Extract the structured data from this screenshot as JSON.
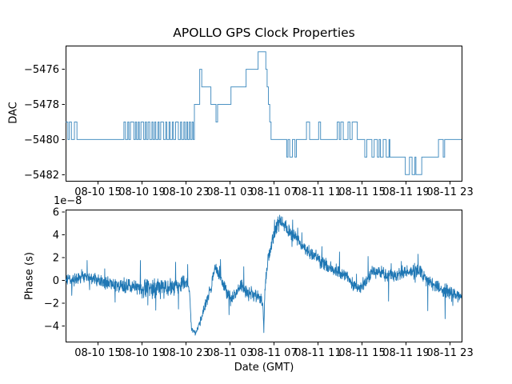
{
  "figure": {
    "background": "#ffffff",
    "line_color": "#1f77b4",
    "spine_color": "#000000",
    "text_color": "#000000"
  },
  "chart_data": [
    {
      "type": "step",
      "title": "APOLLO GPS Clock Properties",
      "ylabel": "DAC",
      "x_unit": "hours from 08-10 00:00 GMT",
      "xlim": [
        12.1,
        48.1
      ],
      "ylim": [
        -5482.35,
        -5474.65
      ],
      "grid": false,
      "legend": "none",
      "xticks": {
        "values": [
          15,
          19,
          23,
          27,
          31,
          35,
          39,
          43,
          47
        ],
        "labels": [
          "08-10 15",
          "08-10 19",
          "08-10 23",
          "08-11 03",
          "08-11 07",
          "08-11 11",
          "08-11 15",
          "08-11 19",
          "08-11 23"
        ]
      },
      "yticks": {
        "values": [
          -5476,
          -5478,
          -5480,
          -5482
        ],
        "labels": [
          "−5476",
          "−5478",
          "−5480",
          "−5482"
        ]
      },
      "x_end": 48.1,
      "steps": [
        [
          12.1,
          -5479
        ],
        [
          12.3,
          -5480
        ],
        [
          12.44,
          -5479
        ],
        [
          12.63,
          -5480
        ],
        [
          12.9,
          -5479
        ],
        [
          13.13,
          -5480
        ],
        [
          17.4,
          -5479
        ],
        [
          17.55,
          -5480
        ],
        [
          17.75,
          -5479
        ],
        [
          17.85,
          -5480
        ],
        [
          18.0,
          -5479
        ],
        [
          18.3,
          -5480
        ],
        [
          18.45,
          -5479
        ],
        [
          18.55,
          -5480
        ],
        [
          18.7,
          -5479
        ],
        [
          18.8,
          -5480
        ],
        [
          18.95,
          -5479
        ],
        [
          19.2,
          -5480
        ],
        [
          19.35,
          -5479
        ],
        [
          19.45,
          -5480
        ],
        [
          19.6,
          -5479
        ],
        [
          19.75,
          -5480
        ],
        [
          19.95,
          -5479
        ],
        [
          20.05,
          -5480
        ],
        [
          20.2,
          -5479
        ],
        [
          20.3,
          -5480
        ],
        [
          20.5,
          -5479
        ],
        [
          20.6,
          -5480
        ],
        [
          20.75,
          -5479
        ],
        [
          21.0,
          -5480
        ],
        [
          21.2,
          -5479
        ],
        [
          21.3,
          -5480
        ],
        [
          21.5,
          -5479
        ],
        [
          21.6,
          -5480
        ],
        [
          21.8,
          -5479
        ],
        [
          21.9,
          -5480
        ],
        [
          22.1,
          -5479
        ],
        [
          22.35,
          -5480
        ],
        [
          22.55,
          -5479
        ],
        [
          22.65,
          -5480
        ],
        [
          22.85,
          -5479
        ],
        [
          22.95,
          -5480
        ],
        [
          23.1,
          -5479
        ],
        [
          23.2,
          -5480
        ],
        [
          23.35,
          -5479
        ],
        [
          23.45,
          -5480
        ],
        [
          23.6,
          -5479
        ],
        [
          23.7,
          -5480
        ],
        [
          23.81,
          -5478
        ],
        [
          24.29,
          -5476
        ],
        [
          24.48,
          -5477
        ],
        [
          25.31,
          -5478
        ],
        [
          25.77,
          -5479
        ],
        [
          25.92,
          -5478
        ],
        [
          27.13,
          -5477
        ],
        [
          28.51,
          -5476
        ],
        [
          29.6,
          -5475
        ],
        [
          30.3,
          -5476
        ],
        [
          30.42,
          -5477
        ],
        [
          30.54,
          -5478
        ],
        [
          30.66,
          -5479
        ],
        [
          30.78,
          -5480
        ],
        [
          32.2,
          -5481
        ],
        [
          32.32,
          -5480
        ],
        [
          32.48,
          -5481
        ],
        [
          32.72,
          -5480
        ],
        [
          32.95,
          -5481
        ],
        [
          33.08,
          -5480
        ],
        [
          34.0,
          -5479
        ],
        [
          34.28,
          -5480
        ],
        [
          35.1,
          -5479
        ],
        [
          35.28,
          -5480
        ],
        [
          36.8,
          -5479
        ],
        [
          36.98,
          -5480
        ],
        [
          37.12,
          -5479
        ],
        [
          37.34,
          -5480
        ],
        [
          37.77,
          -5479
        ],
        [
          37.95,
          -5480
        ],
        [
          38.15,
          -5479
        ],
        [
          38.62,
          -5480
        ],
        [
          39.3,
          -5481
        ],
        [
          39.48,
          -5480
        ],
        [
          39.95,
          -5481
        ],
        [
          40.15,
          -5480
        ],
        [
          40.44,
          -5481
        ],
        [
          40.6,
          -5480
        ],
        [
          40.72,
          -5481
        ],
        [
          40.97,
          -5480
        ],
        [
          41.24,
          -5481
        ],
        [
          41.5,
          -5480
        ],
        [
          41.58,
          -5481
        ],
        [
          42.98,
          -5482
        ],
        [
          43.36,
          -5481
        ],
        [
          43.6,
          -5482
        ],
        [
          43.85,
          -5481
        ],
        [
          43.95,
          -5482
        ],
        [
          44.48,
          -5481
        ],
        [
          46.0,
          -5480
        ],
        [
          46.43,
          -5481
        ],
        [
          46.56,
          -5480
        ]
      ]
    },
    {
      "type": "line",
      "ylabel": "Phase (s)",
      "offset_label": "1e−8",
      "xlabel": "Date (GMT)",
      "y_scale": 1e-08,
      "xlim": [
        12.1,
        48.1
      ],
      "ylim": [
        -5.35,
        6.2
      ],
      "grid": false,
      "legend": "none",
      "xticks": {
        "values": [
          15,
          19,
          23,
          27,
          31,
          35,
          39,
          43,
          47
        ],
        "labels": [
          "08-10 15",
          "08-10 19",
          "08-10 23",
          "08-11 03",
          "08-11 07",
          "08-11 11",
          "08-11 15",
          "08-11 19",
          "08-11 23"
        ]
      },
      "yticks": {
        "values": [
          6,
          4,
          2,
          0,
          -2,
          -4
        ],
        "labels": [
          "6",
          "4",
          "2",
          "0",
          "−2",
          "−4"
        ]
      },
      "envelope": [
        [
          12.1,
          0.05,
          0.5
        ],
        [
          13.0,
          0.1,
          0.55
        ],
        [
          13.8,
          0.45,
          0.6
        ],
        [
          14.3,
          0.3,
          0.55
        ],
        [
          15.0,
          -0.05,
          0.5
        ],
        [
          16.0,
          -0.2,
          0.55
        ],
        [
          17.0,
          -0.45,
          0.6
        ],
        [
          18.2,
          -0.55,
          0.68
        ],
        [
          19.4,
          -0.7,
          0.72
        ],
        [
          20.5,
          -0.65,
          0.78
        ],
        [
          21.5,
          -0.55,
          0.72
        ],
        [
          22.5,
          -0.4,
          0.68
        ],
        [
          23.15,
          -0.15,
          0.55
        ],
        [
          23.38,
          -1.2,
          0.35
        ],
        [
          23.55,
          -4.25,
          0.28
        ],
        [
          23.95,
          -4.55,
          0.22
        ],
        [
          24.35,
          -3.5,
          0.35
        ],
        [
          24.85,
          -2.1,
          0.45
        ],
        [
          25.35,
          -0.5,
          0.5
        ],
        [
          25.7,
          1.15,
          0.45
        ],
        [
          26.15,
          0.25,
          0.5
        ],
        [
          26.65,
          -0.85,
          0.55
        ],
        [
          27.15,
          -1.65,
          0.55
        ],
        [
          27.65,
          -1.1,
          0.55
        ],
        [
          28.05,
          -0.5,
          0.55
        ],
        [
          28.55,
          -1.1,
          0.55
        ],
        [
          29.25,
          -1.2,
          0.55
        ],
        [
          29.85,
          -1.6,
          0.5
        ],
        [
          30.05,
          -2.4,
          0.3
        ],
        [
          30.12,
          -4.55,
          0.18
        ],
        [
          30.22,
          -0.9,
          0.45
        ],
        [
          30.5,
          1.9,
          0.55
        ],
        [
          30.85,
          3.3,
          0.6
        ],
        [
          31.25,
          4.7,
          0.6
        ],
        [
          31.6,
          5.25,
          0.42
        ],
        [
          31.95,
          4.75,
          0.55
        ],
        [
          32.35,
          4.35,
          0.58
        ],
        [
          32.95,
          3.85,
          0.6
        ],
        [
          33.55,
          3.05,
          0.58
        ],
        [
          34.15,
          2.45,
          0.58
        ],
        [
          34.75,
          2.1,
          0.6
        ],
        [
          35.45,
          1.55,
          0.58
        ],
        [
          36.15,
          1.05,
          0.55
        ],
        [
          36.85,
          0.75,
          0.52
        ],
        [
          37.65,
          0.45,
          0.52
        ],
        [
          38.25,
          -0.45,
          0.55
        ],
        [
          38.85,
          -0.75,
          0.55
        ],
        [
          39.35,
          -0.05,
          0.55
        ],
        [
          39.95,
          0.65,
          0.55
        ],
        [
          40.65,
          0.75,
          0.55
        ],
        [
          41.35,
          0.45,
          0.55
        ],
        [
          42.05,
          0.55,
          0.55
        ],
        [
          42.75,
          0.55,
          0.55
        ],
        [
          43.45,
          0.7,
          0.55
        ],
        [
          44.05,
          0.95,
          0.6
        ],
        [
          44.55,
          0.75,
          0.55
        ],
        [
          44.95,
          0.15,
          0.55
        ],
        [
          45.45,
          -0.35,
          0.55
        ],
        [
          45.95,
          -0.65,
          0.55
        ],
        [
          46.55,
          -0.85,
          0.6
        ],
        [
          47.05,
          -1.05,
          0.55
        ],
        [
          47.55,
          -1.25,
          0.5
        ],
        [
          48.1,
          -1.4,
          0.45
        ]
      ],
      "spikes": [
        [
          14.05,
          1.75
        ],
        [
          16.6,
          -1.9
        ],
        [
          18.9,
          1.75
        ],
        [
          20.3,
          -2.6
        ],
        [
          22.1,
          1.6
        ],
        [
          23.2,
          1.4
        ],
        [
          26.95,
          -3.0
        ],
        [
          28.3,
          1.2
        ],
        [
          31.1,
          5.3
        ],
        [
          31.55,
          5.72
        ],
        [
          33.2,
          4.6
        ],
        [
          37.0,
          2.5
        ],
        [
          39.6,
          2.1
        ],
        [
          44.15,
          2.3
        ],
        [
          45.02,
          -2.65
        ],
        [
          46.6,
          -3.35
        ],
        [
          47.3,
          -2.2
        ]
      ],
      "noise": {
        "seed": 1337,
        "dt": 0.02,
        "tail_p": 0.978,
        "tail_mult": 2.0,
        "clamp": [
          -4.8,
          5.8
        ]
      }
    }
  ]
}
